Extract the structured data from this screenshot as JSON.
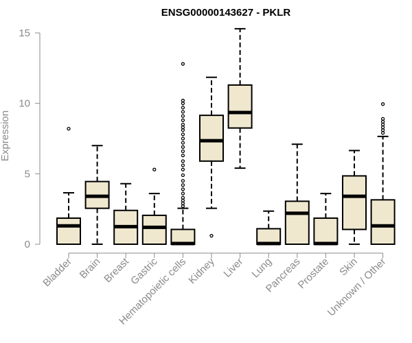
{
  "chart_data": {
    "type": "boxplot",
    "title": "ENSG00000143627 - PKLR",
    "xlabel": "",
    "ylabel": "Expression",
    "ylim": [
      0,
      15
    ],
    "yticks": [
      0,
      5,
      10,
      15
    ],
    "box_fill": "#efe8cf",
    "categories": [
      "Bladder",
      "Brain",
      "Breast",
      "Gastric",
      "Hematopoietic cells",
      "Kidney",
      "Liver",
      "Lung",
      "Pancreas",
      "Prostate",
      "Skin",
      "Unknown / Other"
    ],
    "boxes": [
      {
        "category": "Bladder",
        "whisker_low": 0,
        "q1": 0,
        "median": 1.3,
        "q3": 1.85,
        "whisker_high": 3.65,
        "outliers": [
          8.2
        ]
      },
      {
        "category": "Brain",
        "whisker_low": 0,
        "q1": 2.55,
        "median": 3.4,
        "q3": 4.45,
        "whisker_high": 7.0,
        "outliers": []
      },
      {
        "category": "Breast",
        "whisker_low": 0,
        "q1": 0,
        "median": 1.25,
        "q3": 2.4,
        "whisker_high": 4.3,
        "outliers": []
      },
      {
        "category": "Gastric",
        "whisker_low": 0,
        "q1": 0,
        "median": 1.2,
        "q3": 2.05,
        "whisker_high": 3.6,
        "outliers": [
          5.3
        ]
      },
      {
        "category": "Hematopoietic cells",
        "whisker_low": 0,
        "q1": 0,
        "median": 0.05,
        "q3": 1.05,
        "whisker_high": 2.55,
        "outliers": [
          2.7,
          2.9,
          3.1,
          3.3,
          3.6,
          3.9,
          4.2,
          4.5,
          4.9,
          5.3,
          5.6,
          5.9,
          6.3,
          6.6,
          6.9,
          7.2,
          7.5,
          7.8,
          8.1,
          8.3,
          8.5,
          8.8,
          9.1,
          9.4,
          9.7,
          10.0,
          10.2,
          12.8
        ]
      },
      {
        "category": "Kidney",
        "whisker_low": 2.55,
        "q1": 5.9,
        "median": 7.35,
        "q3": 9.15,
        "whisker_high": 11.85,
        "outliers": [
          0.6
        ]
      },
      {
        "category": "Liver",
        "whisker_low": 5.4,
        "q1": 8.25,
        "median": 9.35,
        "q3": 11.3,
        "whisker_high": 15.3,
        "outliers": []
      },
      {
        "category": "Lung",
        "whisker_low": 0,
        "q1": 0,
        "median": 0.05,
        "q3": 1.1,
        "whisker_high": 2.35,
        "outliers": []
      },
      {
        "category": "Pancreas",
        "whisker_low": 0,
        "q1": 0,
        "median": 2.2,
        "q3": 3.05,
        "whisker_high": 7.1,
        "outliers": []
      },
      {
        "category": "Prostate",
        "whisker_low": 0,
        "q1": 0,
        "median": 0.05,
        "q3": 1.85,
        "whisker_high": 3.6,
        "outliers": []
      },
      {
        "category": "Skin",
        "whisker_low": 0,
        "q1": 1.05,
        "median": 3.4,
        "q3": 4.85,
        "whisker_high": 6.65,
        "outliers": []
      },
      {
        "category": "Unknown / Other",
        "whisker_low": 0,
        "q1": 0,
        "median": 1.3,
        "q3": 3.15,
        "whisker_high": 7.65,
        "outliers": [
          7.9,
          8.1,
          8.3,
          8.5,
          8.7,
          8.9,
          9.95
        ]
      }
    ]
  }
}
